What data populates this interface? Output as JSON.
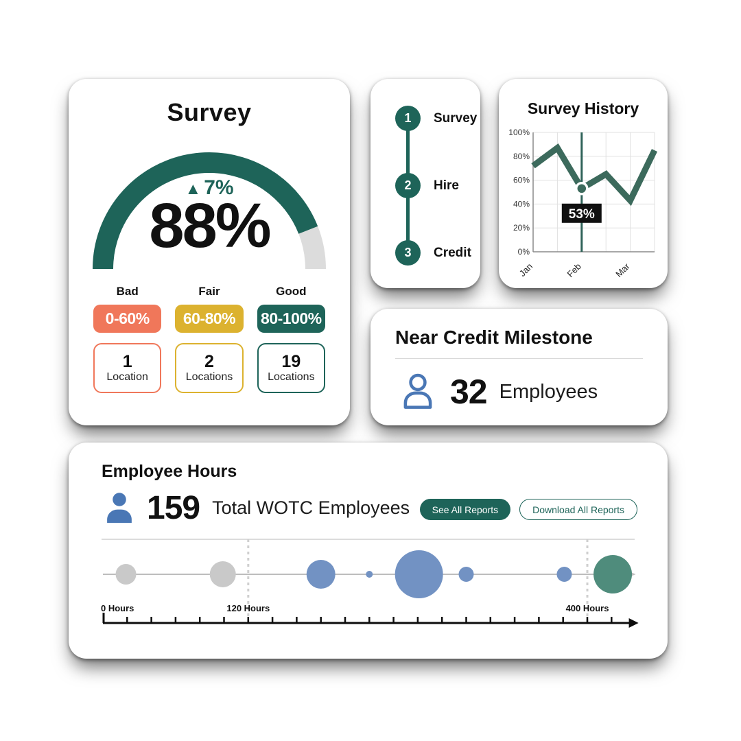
{
  "colors": {
    "teal": "#1E6459",
    "line_green": "#3C6A5C",
    "salmon": "#F0775A",
    "mustard": "#DCB22F",
    "gauge_rest": "#DCDCDC",
    "blue_icon": "#4A77B5",
    "bubble_gray": "#C9C9C9",
    "bubble_blue": "#7292C3",
    "bubble_green": "#4F8C7C",
    "tooltip_bg": "#101010",
    "grid_gray": "#e0e0e0",
    "axis_gray": "#8a8a8a"
  },
  "survey": {
    "title": "Survey",
    "gauge": {
      "value": 88,
      "value_label": "88%",
      "delta_icon": "▲",
      "delta_label": "7%"
    },
    "categories": [
      {
        "name": "Bad",
        "range": "0-60%",
        "count": "1",
        "unit": "Location",
        "color_key": "salmon"
      },
      {
        "name": "Fair",
        "range": "60-80%",
        "count": "2",
        "unit": "Locations",
        "color_key": "mustard"
      },
      {
        "name": "Good",
        "range": "80-100%",
        "count": "19",
        "unit": "Locations",
        "color_key": "teal"
      }
    ]
  },
  "stepper": {
    "steps": [
      {
        "number": "1",
        "label": "Survey"
      },
      {
        "number": "2",
        "label": "Hire"
      },
      {
        "number": "3",
        "label": "Credit"
      }
    ]
  },
  "history": {
    "title": "Survey History",
    "chart_data": {
      "type": "line",
      "title": "Survey History",
      "x_ticks": [
        {
          "pos": 0.0,
          "label": "Jan"
        },
        {
          "pos": 0.4,
          "label": "Feb"
        },
        {
          "pos": 0.8,
          "label": "Mar"
        }
      ],
      "points": [
        {
          "x": 0.0,
          "y": 72
        },
        {
          "x": 0.2,
          "y": 87
        },
        {
          "x": 0.4,
          "y": 53
        },
        {
          "x": 0.6,
          "y": 65
        },
        {
          "x": 0.8,
          "y": 43
        },
        {
          "x": 1.0,
          "y": 85
        }
      ],
      "ylim": [
        0,
        100
      ],
      "y_tick_step": 20,
      "y_tick_suffix": "%",
      "grid": true,
      "legend": "none",
      "highlight": {
        "point_index": 2,
        "label": "53%"
      }
    }
  },
  "milestone": {
    "title": "Near Credit Milestone",
    "value": "32",
    "unit": "Employees"
  },
  "hours": {
    "title": "Employee Hours",
    "total": "159",
    "total_label": "Total WOTC Employees",
    "buttons": {
      "see_all": "See All Reports",
      "download_all": "Download All Reports"
    },
    "chart_data": {
      "type": "bubble-timeline",
      "unit": "Hours",
      "markers": [
        {
          "hours": 0,
          "label": "0 Hours",
          "dashed": false
        },
        {
          "hours": 120,
          "label": "120 Hours",
          "dashed": true
        },
        {
          "hours": 400,
          "label": "400 Hours",
          "dashed": true
        }
      ],
      "bubbles": [
        {
          "hours": 19,
          "radius": 15,
          "color_key": "bubble_gray"
        },
        {
          "hours": 99,
          "radius": 19,
          "color_key": "bubble_gray"
        },
        {
          "hours": 180,
          "radius": 21,
          "color_key": "bubble_blue"
        },
        {
          "hours": 220,
          "radius": 5,
          "color_key": "bubble_blue"
        },
        {
          "hours": 261,
          "radius": 35,
          "color_key": "bubble_blue"
        },
        {
          "hours": 300,
          "radius": 11,
          "color_key": "bubble_blue"
        },
        {
          "hours": 381,
          "radius": 11,
          "color_key": "bubble_blue"
        },
        {
          "hours": 421,
          "radius": 28,
          "color_key": "bubble_green"
        }
      ],
      "tick_step_hours": 20,
      "axis_max_hours": 440
    }
  }
}
